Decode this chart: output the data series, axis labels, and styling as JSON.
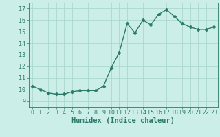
{
  "x": [
    0,
    1,
    2,
    3,
    4,
    5,
    6,
    7,
    8,
    9,
    10,
    11,
    12,
    13,
    14,
    15,
    16,
    17,
    18,
    19,
    20,
    21,
    22,
    23
  ],
  "y": [
    10.3,
    10.0,
    9.7,
    9.6,
    9.6,
    9.8,
    9.9,
    9.9,
    9.9,
    10.3,
    11.9,
    13.2,
    15.7,
    14.9,
    16.0,
    15.6,
    16.5,
    16.9,
    16.3,
    15.7,
    15.4,
    15.2,
    15.2,
    15.4
  ],
  "line_color": "#2a7a6a",
  "marker": "D",
  "marker_size": 2.5,
  "bg_color": "#cceee8",
  "grid_color": "#aad8d0",
  "xlabel": "Humidex (Indice chaleur)",
  "xlim": [
    -0.5,
    23.5
  ],
  "ylim": [
    8.5,
    17.5
  ],
  "xticks": [
    0,
    1,
    2,
    3,
    4,
    5,
    6,
    7,
    8,
    9,
    10,
    11,
    12,
    13,
    14,
    15,
    16,
    17,
    18,
    19,
    20,
    21,
    22,
    23
  ],
  "yticks": [
    9,
    10,
    11,
    12,
    13,
    14,
    15,
    16,
    17
  ],
  "tick_fontsize": 6,
  "xlabel_fontsize": 7.5,
  "linewidth": 1.0
}
